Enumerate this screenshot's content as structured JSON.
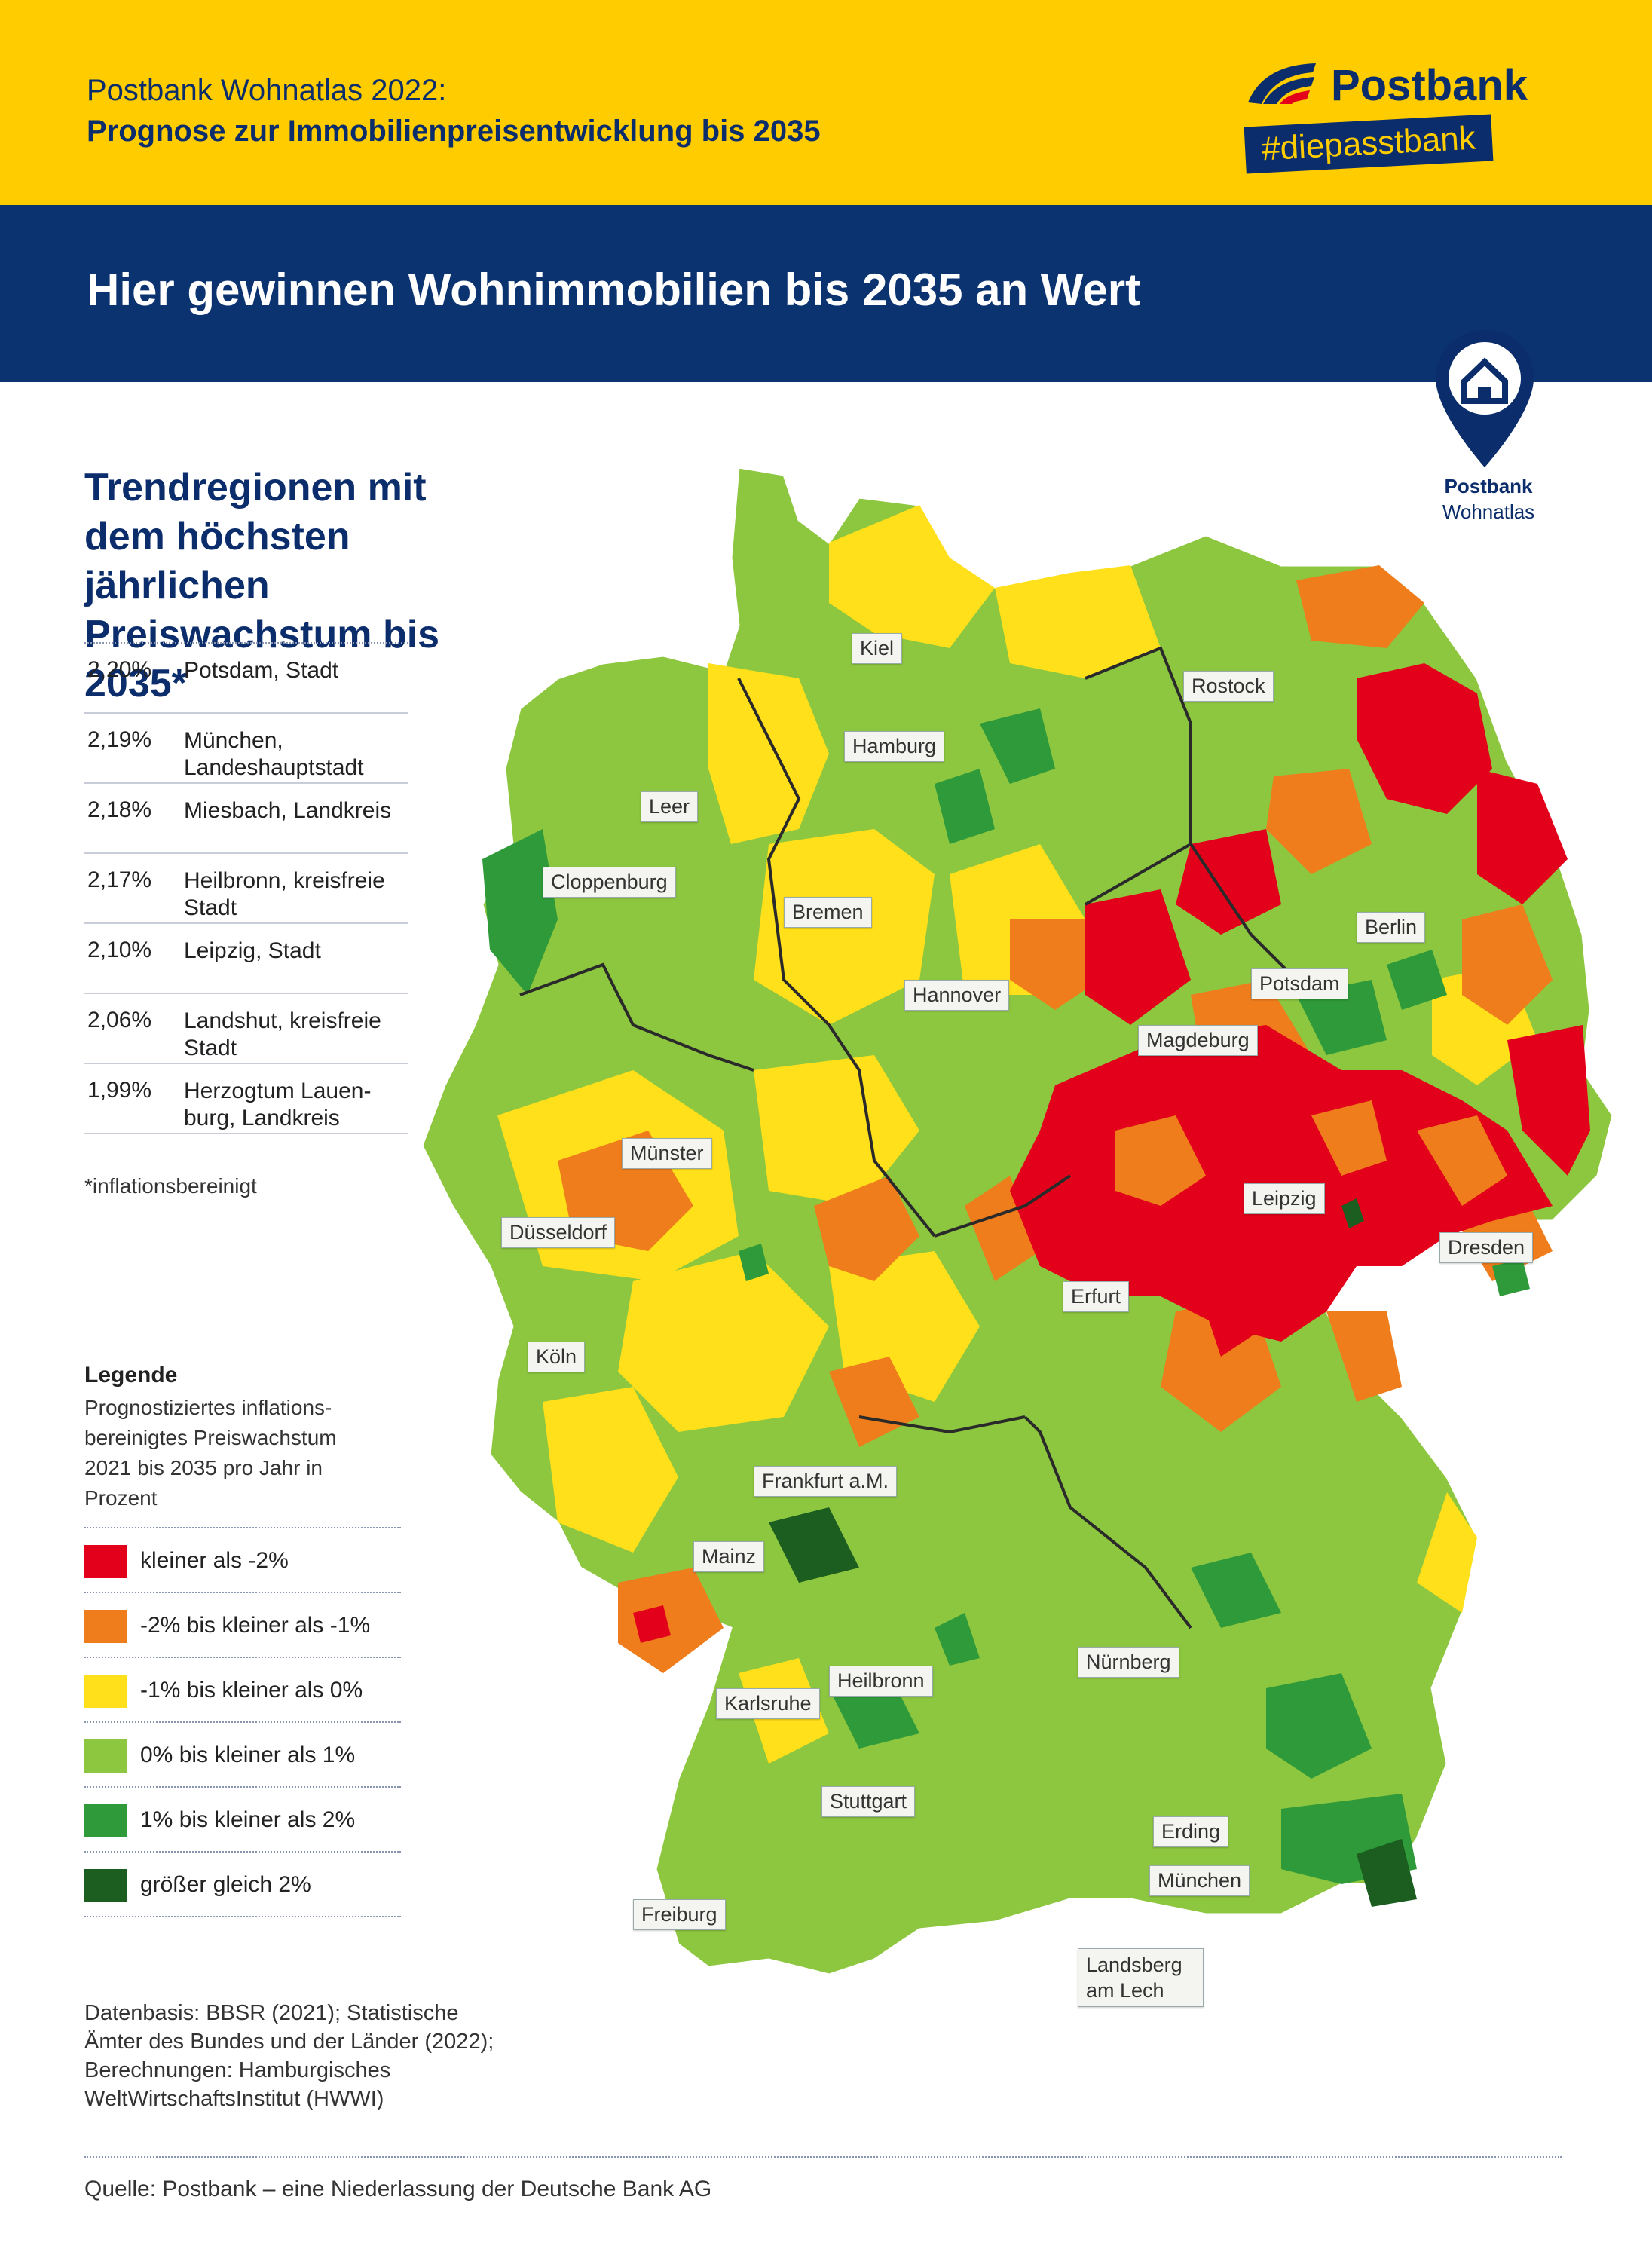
{
  "header": {
    "line1": "Postbank Wohnatlas 2022:",
    "line2": "Prognose zur Immobilienpreisentwicklung bis 2035",
    "brand_name": "Postbank",
    "brand_tag": "#diepasstbank",
    "headline": "Hier gewinnen Wohnimmobilien bis 2035 an Wert"
  },
  "pin": {
    "line1": "Postbank",
    "line2": "Wohnatlas"
  },
  "trend": {
    "title": "Trendregionen mit dem höchsten jährlichen Preiswachstum bis 2035*",
    "rows": [
      {
        "pct": "2,20%",
        "name": "Potsdam, Stadt"
      },
      {
        "pct": "2,19%",
        "name": "München, Landeshauptstadt"
      },
      {
        "pct": "2,18%",
        "name": "Miesbach, Landkreis"
      },
      {
        "pct": "2,17%",
        "name": "Heilbronn, kreisfreie Stadt"
      },
      {
        "pct": "2,10%",
        "name": "Leipzig, Stadt"
      },
      {
        "pct": "2,06%",
        "name": "Landshut, kreisfreie Stadt"
      },
      {
        "pct": "1,99%",
        "name": "Herzogtum Lauen-burg, Landkreis"
      }
    ],
    "footnote": "*inflationsbereinigt"
  },
  "legend": {
    "title": "Legende",
    "description": "Prognostiziertes inflations-bereinigtes Preiswachstum 2021 bis 2035 pro Jahr in Prozent",
    "items": [
      {
        "label": "kleiner als -2%",
        "color": "#e2001a"
      },
      {
        "label": "-2% bis kleiner als -1%",
        "color": "#ef7d1c"
      },
      {
        "label": "-1% bis kleiner als 0%",
        "color": "#ffe01a"
      },
      {
        "label": "0% bis kleiner als 1%",
        "color": "#8dc63f"
      },
      {
        "label": "1% bis kleiner als 2%",
        "color": "#2e9a3a"
      },
      {
        "label": "größer gleich 2%",
        "color": "#1b5e20"
      }
    ]
  },
  "datasource": "Datenbasis: BBSR (2021); Statistische Ämter des Bundes und der Länder (2022); Berechnungen: Hamburgisches WeltWirtschaftsInstitut (HWWI)",
  "source": "Quelle: Postbank – eine Niederlassung der Deutsche Bank AG",
  "cities": [
    "Kiel",
    "Rostock",
    "Hamburg",
    "Leer",
    "Cloppenburg",
    "Bremen",
    "Berlin",
    "Hannover",
    "Potsdam",
    "Magdeburg",
    "Münster",
    "Düsseldorf",
    "Leipzig",
    "Dresden",
    "Erfurt",
    "Köln",
    "Frankfurt a.M.",
    "Mainz",
    "Nürnberg",
    "Heilbronn",
    "Karlsruhe",
    "Stuttgart",
    "Erding",
    "München",
    "Freiburg",
    "Landsberg am Lech"
  ]
}
